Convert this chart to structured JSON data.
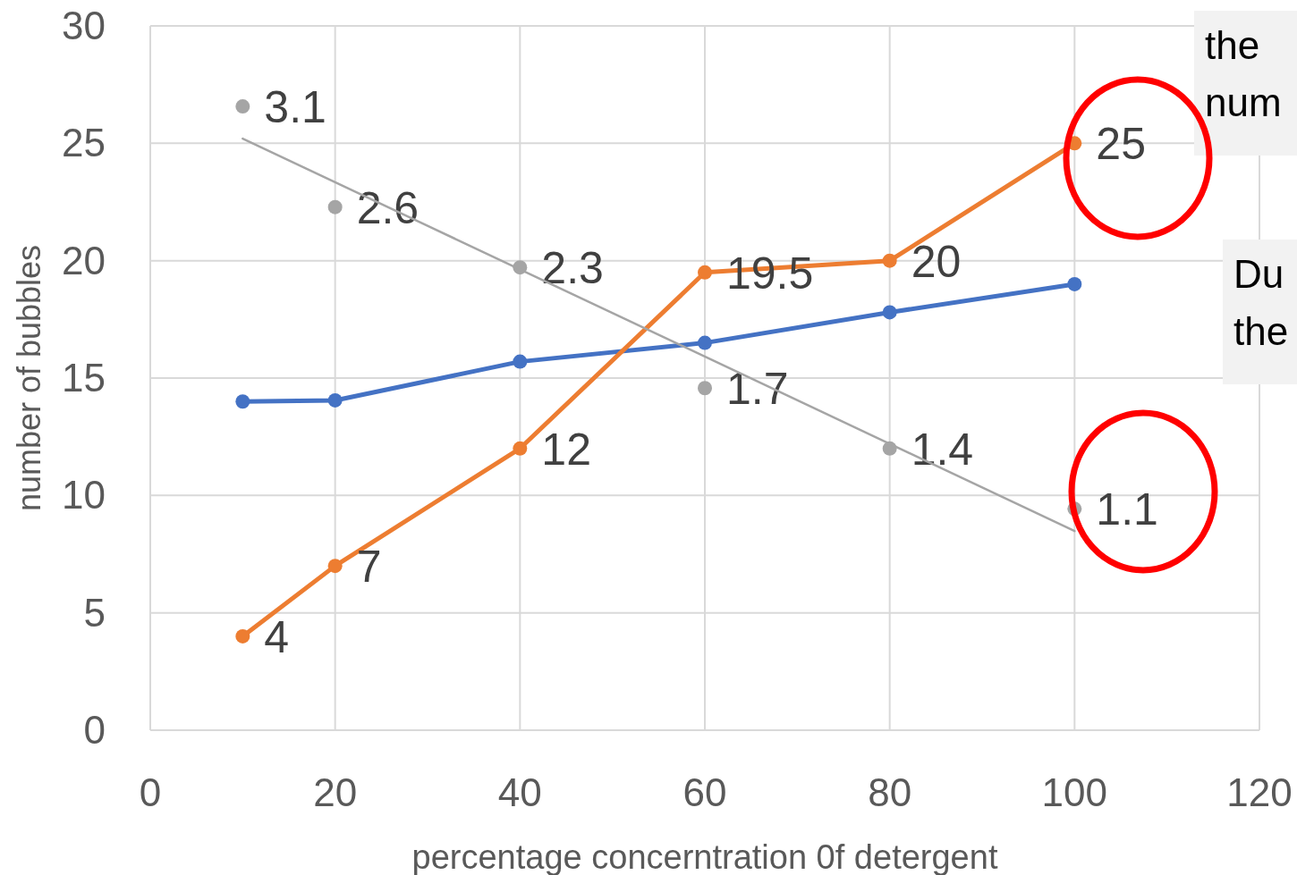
{
  "chart_data": {
    "type": "line",
    "xlabel": "percentage concerntration 0f detergent",
    "ylabel": "number of bubbles",
    "x": [
      10,
      20,
      40,
      60,
      80,
      100
    ],
    "xlim": [
      0,
      120
    ],
    "xticks": [
      0,
      20,
      40,
      60,
      80,
      100,
      120
    ],
    "ylim": [
      0,
      30
    ],
    "yticks": [
      0,
      5,
      10,
      15,
      20,
      25,
      30
    ],
    "y2lim": [
      0,
      3.5
    ],
    "grid": true,
    "marker": "circle",
    "line_style": "solid",
    "series": [
      {
        "color": "#4472c4",
        "values": [
          14,
          14.05,
          15.7,
          16.5,
          17.8,
          19
        ]
      },
      {
        "color": "#ed7d31",
        "values": [
          4,
          7,
          12,
          19.5,
          20,
          25
        ],
        "value_labels": [
          "4",
          "7",
          "12",
          "19.5",
          "20",
          "25"
        ]
      },
      {
        "type": "scatter",
        "axis": "y2",
        "color": "#a5a5a5",
        "values": [
          3.1,
          2.6,
          2.3,
          1.7,
          1.4,
          1.1
        ],
        "value_labels": [
          "3.1",
          "2.6",
          "2.3",
          "1.7",
          "1.4",
          "1.1"
        ]
      },
      {
        "axis": "y2",
        "color": "#a5a5a5",
        "marker": "none",
        "x": [
          10,
          100
        ],
        "values": [
          2.94,
          0.99
        ]
      }
    ],
    "annotations": [
      "the\nnum",
      "Du\nthe"
    ]
  }
}
